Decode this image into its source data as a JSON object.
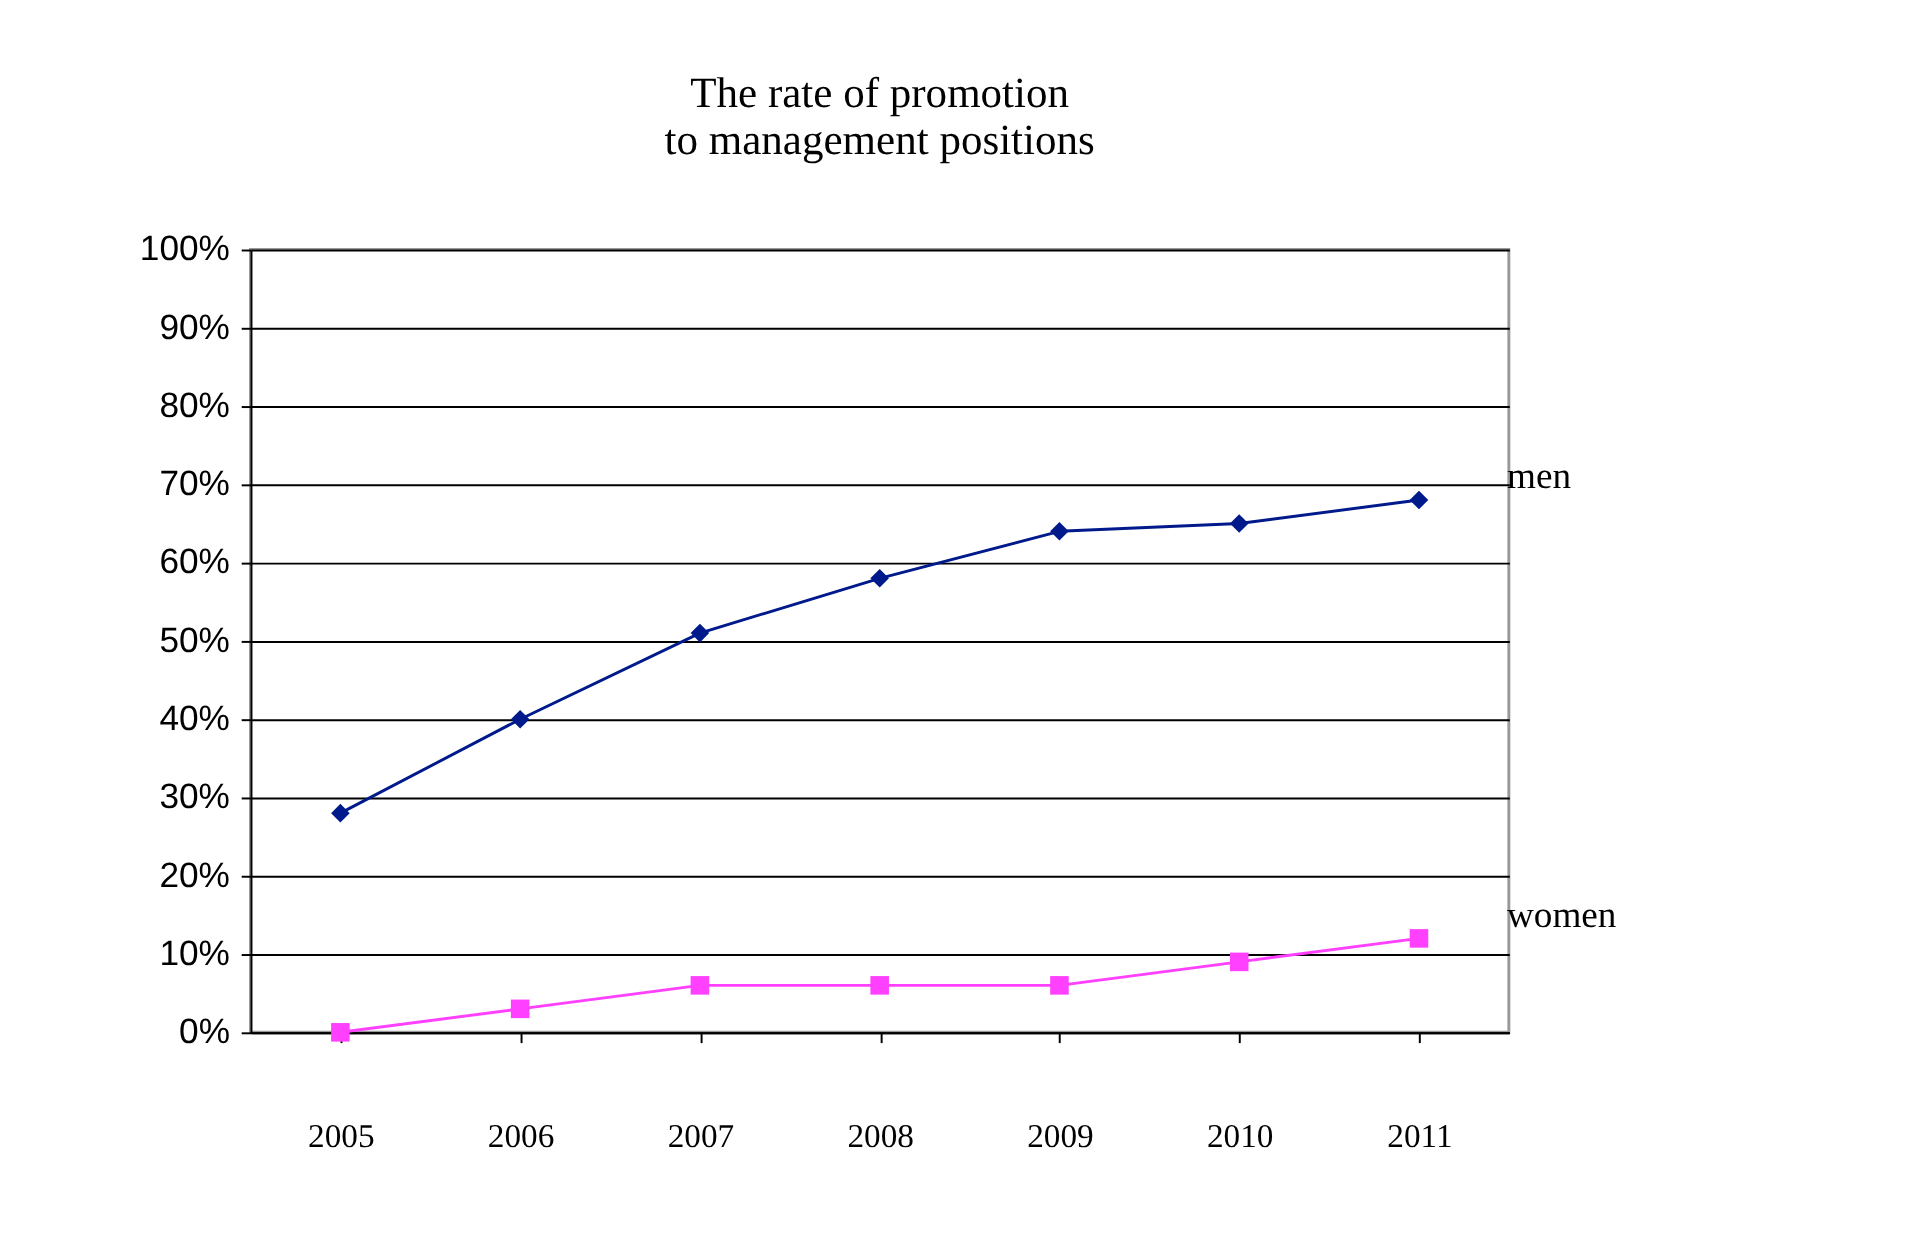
{
  "chart_data": {
    "type": "line",
    "title": "The rate of promotion\nto management positions",
    "categories": [
      "2005",
      "2006",
      "2007",
      "2008",
      "2009",
      "2010",
      "2011"
    ],
    "series": [
      {
        "name": "men",
        "color": "#001a8c",
        "marker": "diamond",
        "values": [
          28,
          40,
          51,
          58,
          64,
          65,
          68
        ]
      },
      {
        "name": "women",
        "color": "#ff40ff",
        "marker": "square",
        "values": [
          0,
          3,
          6,
          6,
          6,
          9,
          12
        ]
      }
    ],
    "ylim": [
      0,
      100
    ],
    "yticks": [
      {
        "value": 0,
        "label": "0%"
      },
      {
        "value": 10,
        "label": "10%"
      },
      {
        "value": 20,
        "label": "20%"
      },
      {
        "value": 30,
        "label": "30%"
      },
      {
        "value": 40,
        "label": "40%"
      },
      {
        "value": 50,
        "label": "50%"
      },
      {
        "value": 60,
        "label": "60%"
      },
      {
        "value": 70,
        "label": "70%"
      },
      {
        "value": 80,
        "label": "80%"
      },
      {
        "value": 90,
        "label": "90%"
      },
      {
        "value": 100,
        "label": "100%"
      }
    ],
    "grid": "y"
  }
}
